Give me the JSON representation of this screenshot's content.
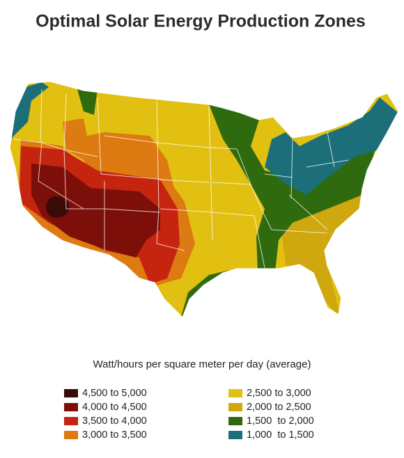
{
  "title": "Optimal Solar Energy Production Zones",
  "legend": {
    "title": "Watt/hours per square meter per day (average)",
    "items": [
      {
        "label": "4,500 to 5,000",
        "color": "#3a0a06"
      },
      {
        "label": "4,000 to 4,500",
        "color": "#7d0f0a"
      },
      {
        "label": "3,500 to 4,000",
        "color": "#c5250f"
      },
      {
        "label": "3,000 to 3,500",
        "color": "#dd7a12"
      },
      {
        "label": "2,500 to 3,000",
        "color": "#e2c012"
      },
      {
        "label": "2,000 to 2,500",
        "color": "#cfa70f"
      },
      {
        "label": "1,500  to 2,000",
        "color": "#2f6a0e"
      },
      {
        "label": "1,000  to 1,500",
        "color": "#1c6f78"
      }
    ]
  }
}
